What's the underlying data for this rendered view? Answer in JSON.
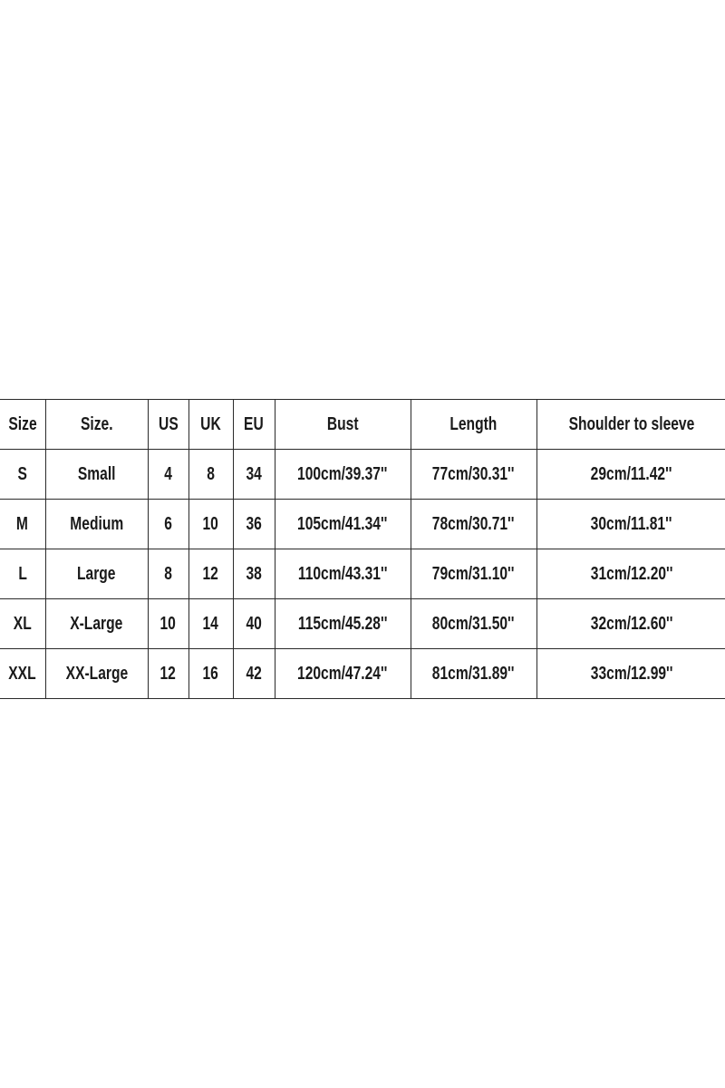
{
  "size_chart": {
    "headers": [
      "Size",
      "Size.",
      "US",
      "UK",
      "EU",
      "Bust",
      "Length",
      "Shoulder to sleeve"
    ],
    "rows": [
      [
        "S",
        "Small",
        "4",
        "8",
        "34",
        "100cm/39.37''",
        "77cm/30.31''",
        "29cm/11.42''"
      ],
      [
        "M",
        "Medium",
        "6",
        "10",
        "36",
        "105cm/41.34''",
        "78cm/30.71''",
        "30cm/11.81''"
      ],
      [
        "L",
        "Large",
        "8",
        "12",
        "38",
        "110cm/43.31''",
        "79cm/31.10''",
        "31cm/12.20''"
      ],
      [
        "XL",
        "X-Large",
        "10",
        "14",
        "40",
        "115cm/45.28''",
        "80cm/31.50''",
        "32cm/12.60''"
      ],
      [
        "XXL",
        "XX-Large",
        "12",
        "16",
        "42",
        "120cm/47.24''",
        "81cm/31.89''",
        "33cm/12.99''"
      ]
    ]
  }
}
